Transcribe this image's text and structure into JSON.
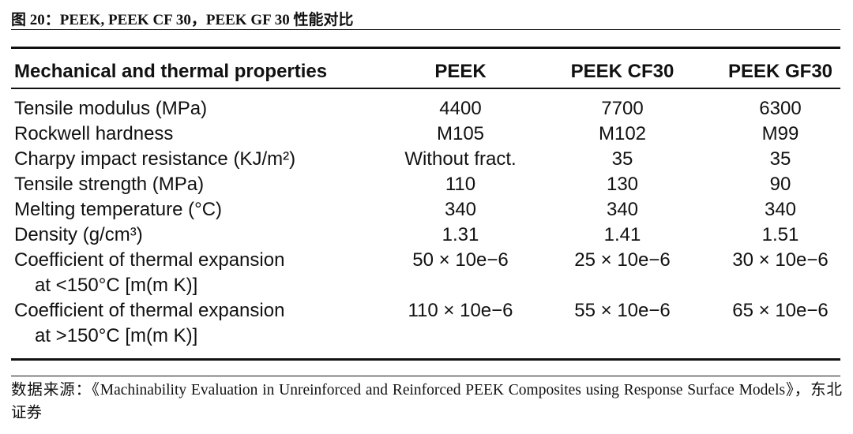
{
  "title": "图 20：PEEK, PEEK CF 30，PEEK GF 30 性能对比",
  "table": {
    "header": [
      "Mechanical and thermal properties",
      "PEEK",
      "PEEK CF30",
      "PEEK GF30"
    ],
    "rows": [
      {
        "label": [
          "Tensile modulus (MPa)"
        ],
        "values": [
          "4400",
          "7700",
          "6300"
        ]
      },
      {
        "label": [
          "Rockwell hardness"
        ],
        "values": [
          "M105",
          "M102",
          "M99"
        ]
      },
      {
        "label": [
          "Charpy impact resistance (KJ/m²)"
        ],
        "values": [
          "Without fract.",
          "35",
          "35"
        ]
      },
      {
        "label": [
          "Tensile strength (MPa)"
        ],
        "values": [
          "110",
          "130",
          "90"
        ]
      },
      {
        "label": [
          "Melting temperature (°C)"
        ],
        "values": [
          "340",
          "340",
          "340"
        ]
      },
      {
        "label": [
          "Density (g/cm³)"
        ],
        "values": [
          "1.31",
          "1.41",
          "1.51"
        ]
      },
      {
        "label": [
          "Coefficient of thermal expansion",
          "at <150°C [m(m K)]"
        ],
        "values": [
          "50 × 10e−6",
          "25 × 10e−6",
          "30 × 10e−6"
        ]
      },
      {
        "label": [
          "Coefficient of thermal expansion",
          "at >150°C [m(m K)]"
        ],
        "values": [
          "110 × 10e−6",
          "55 × 10e−6",
          "65 × 10e−6"
        ]
      }
    ]
  },
  "source": "数据来源：《Machinability Evaluation in Unreinforced and Reinforced PEEK Composites using Response Surface Models》，东北证券"
}
